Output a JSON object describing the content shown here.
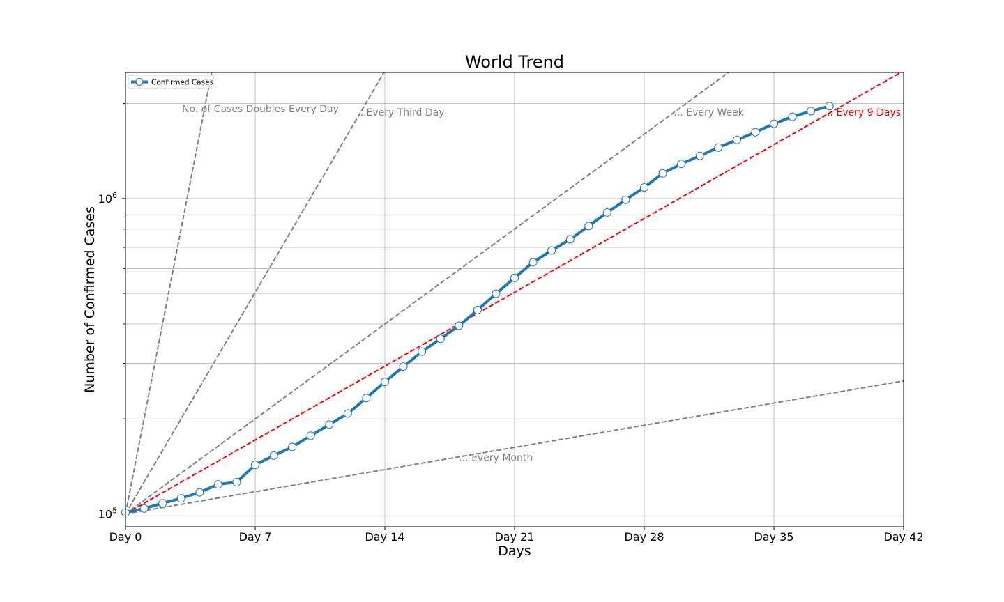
{
  "chart_data": {
    "type": "line",
    "title": "World Trend",
    "xlabel": "Days",
    "ylabel": "Number of Confirmed Cases",
    "xlim": [
      0,
      42
    ],
    "ylim": [
      91000,
      2510000
    ],
    "yscale": "log",
    "grid": true,
    "legend_position": "top-left",
    "x_ticks": [
      {
        "value": 0,
        "label": "Day 0"
      },
      {
        "value": 7,
        "label": "Day 7"
      },
      {
        "value": 14,
        "label": "Day 14"
      },
      {
        "value": 21,
        "label": "Day 21"
      },
      {
        "value": 28,
        "label": "Day 28"
      },
      {
        "value": 35,
        "label": "Day 35"
      },
      {
        "value": 42,
        "label": "Day 42"
      }
    ],
    "y_major_ticks": [
      {
        "value": 100000,
        "base": "10",
        "exp": "5"
      },
      {
        "value": 1000000,
        "base": "10",
        "exp": "6"
      }
    ],
    "series": [
      {
        "name": "Confirmed Cases",
        "color": "#1f77b4",
        "x": [
          0,
          1,
          2,
          3,
          4,
          5,
          6,
          7,
          8,
          9,
          10,
          11,
          12,
          13,
          14,
          15,
          16,
          17,
          18,
          19,
          20,
          21,
          22,
          23,
          24,
          25,
          26,
          27,
          28,
          29,
          30,
          31,
          32,
          33,
          34,
          35,
          36,
          37,
          38
        ],
        "y": [
          101000,
          104000,
          108000,
          112000,
          117000,
          124000,
          126000,
          143000,
          153000,
          163000,
          177000,
          192000,
          208000,
          233000,
          262000,
          293000,
          327000,
          359000,
          395000,
          443000,
          499000,
          560000,
          628000,
          684000,
          742000,
          818000,
          903000,
          991000,
          1084000,
          1202000,
          1287000,
          1366000,
          1451000,
          1534000,
          1623000,
          1727000,
          1816000,
          1893000,
          1964000
        ]
      }
    ],
    "reference_lines": [
      {
        "label": "No. of Cases Doubles Every Day",
        "days": 1,
        "color": "#808080",
        "label_x": 3.05,
        "label_y": 1880000
      },
      {
        "label": "...Every Third Day",
        "days": 3,
        "color": "#808080",
        "label_x": 12.5,
        "label_y": 1830000
      },
      {
        "label": "... Every Week",
        "days": 7,
        "color": "#808080",
        "label_x": 29.6,
        "label_y": 1830000
      },
      {
        "label": "... Every 9 Days",
        "days": 9,
        "color": "#ff0000",
        "label_x": 37.7,
        "label_y": 1830000
      },
      {
        "label": "... Every Month",
        "days": 30,
        "color": "#808080",
        "label_x": 18.0,
        "label_y": 147000
      }
    ],
    "reference_start": 100000
  }
}
